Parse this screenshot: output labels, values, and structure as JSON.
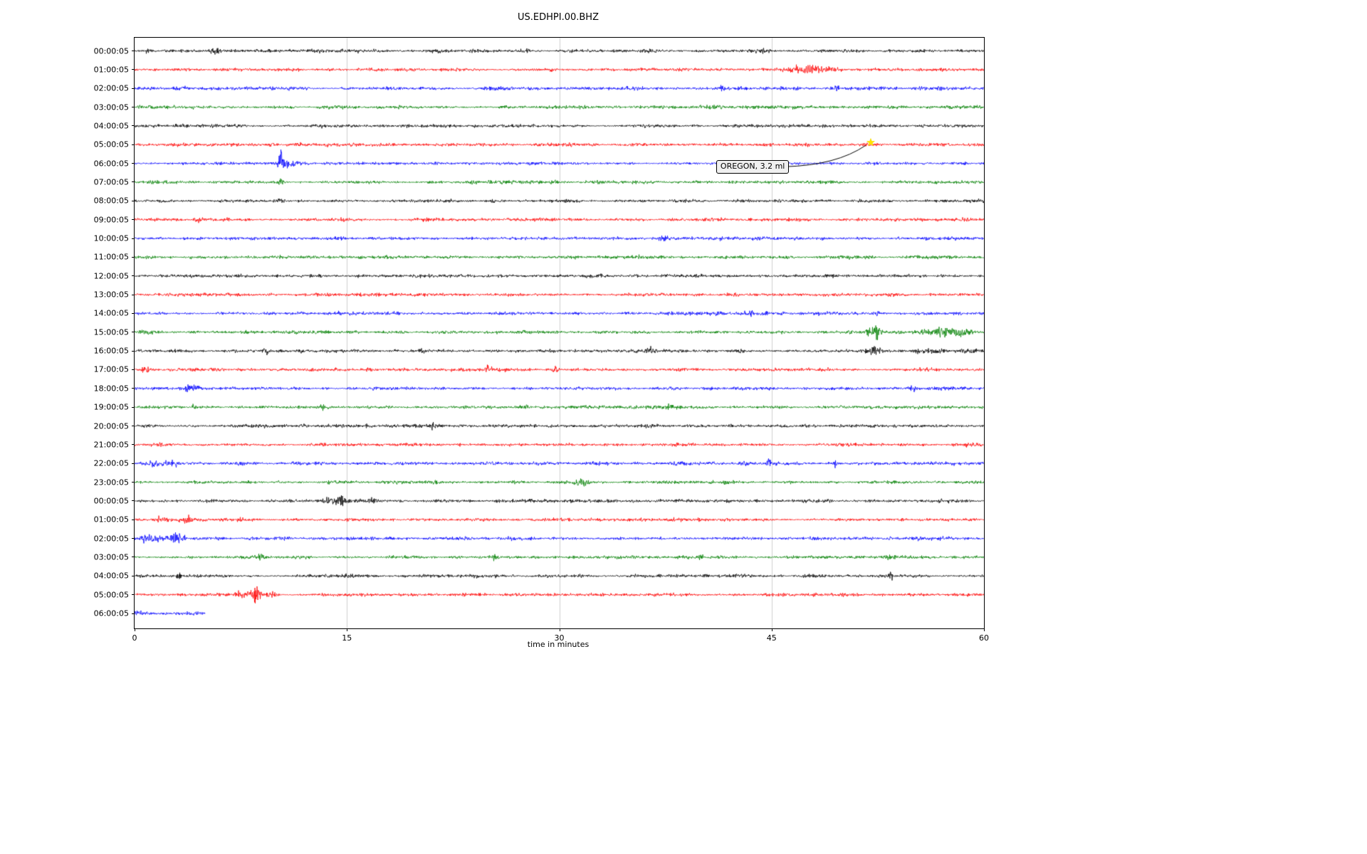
{
  "chart_data": {
    "type": "line",
    "subtype": "seismogram-helicorder",
    "title": "US.EDHPI.00.BHZ",
    "xlabel": "time in minutes",
    "xlim": [
      0,
      60
    ],
    "x_ticks": [
      0,
      15,
      30,
      45,
      60
    ],
    "grid": "vertical-gridlines-at-interior-ticks",
    "legend": "none",
    "color_cycle": [
      "black",
      "red",
      "blue",
      "green"
    ],
    "colors": {
      "black": "#000000",
      "red": "#ff0000",
      "blue": "#0000ff",
      "green": "#008000",
      "grid": "#cfcfcf",
      "star": "#ffe400",
      "annotation_bg": "#f0f0f0"
    },
    "annotation": {
      "text": "OREGON, 3.2 ml",
      "row_label": "05:00:05",
      "row_index": 5,
      "x_minutes": 52,
      "marker": "yellow-star"
    },
    "rows": [
      {
        "label": "00:00:05",
        "color": "black",
        "events": [
          {
            "x": 0.9,
            "a": 2.2,
            "w": 0.12
          },
          {
            "x": 5.6,
            "a": 1.2,
            "w": 0.4
          },
          {
            "x": 44.1,
            "a": 1.6,
            "w": 0.6
          }
        ]
      },
      {
        "label": "01:00:05",
        "color": "red",
        "events": [
          {
            "x": 47.5,
            "a": 1.8,
            "w": 1.2
          },
          {
            "x": 49.2,
            "a": 1.5,
            "w": 0.8
          },
          {
            "x": 56.8,
            "a": 1.2,
            "w": 0.4
          }
        ]
      },
      {
        "label": "02:00:05",
        "color": "blue",
        "events": [
          {
            "x": 41.5,
            "a": 1.2,
            "w": 0.3
          },
          {
            "x": 49.6,
            "a": 2.2,
            "w": 0.15
          }
        ]
      },
      {
        "label": "03:00:05",
        "color": "green",
        "events": []
      },
      {
        "label": "04:00:05",
        "color": "black",
        "events": []
      },
      {
        "label": "05:00:05",
        "color": "red",
        "events": []
      },
      {
        "label": "06:00:05",
        "color": "blue",
        "events": [
          {
            "x": 10.3,
            "a": 7.0,
            "w": 0.18
          },
          {
            "x": 10.9,
            "a": 2.0,
            "w": 0.6
          }
        ]
      },
      {
        "label": "07:00:05",
        "color": "green",
        "events": [
          {
            "x": 10.4,
            "a": 1.5,
            "w": 0.3
          }
        ]
      },
      {
        "label": "08:00:05",
        "color": "black",
        "events": []
      },
      {
        "label": "09:00:05",
        "color": "red",
        "events": [
          {
            "x": 4.5,
            "a": 1.2,
            "w": 0.4
          }
        ]
      },
      {
        "label": "10:00:05",
        "color": "blue",
        "events": [
          {
            "x": 37.3,
            "a": 1.2,
            "w": 0.4
          }
        ]
      },
      {
        "label": "11:00:05",
        "color": "green",
        "events": []
      },
      {
        "label": "12:00:05",
        "color": "black",
        "events": []
      },
      {
        "label": "13:00:05",
        "color": "red",
        "events": []
      },
      {
        "label": "14:00:05",
        "color": "blue",
        "events": [
          {
            "x": 43.4,
            "a": 1.5,
            "w": 0.2
          },
          {
            "x": 52.4,
            "a": 1.6,
            "w": 0.3
          }
        ]
      },
      {
        "label": "15:00:05",
        "color": "green",
        "events": [
          {
            "x": 52.3,
            "a": 6.0,
            "w": 0.5
          },
          {
            "x": 56.5,
            "a": 2.5,
            "w": 0.8
          },
          {
            "x": 58.2,
            "a": 2.5,
            "w": 0.8
          }
        ]
      },
      {
        "label": "16:00:05",
        "color": "black",
        "events": [
          {
            "x": 9.3,
            "a": 1.6,
            "w": 0.2
          },
          {
            "x": 20.3,
            "a": 1.6,
            "w": 0.2
          },
          {
            "x": 36.6,
            "a": 1.8,
            "w": 0.3
          },
          {
            "x": 52.3,
            "a": 2.2,
            "w": 0.5
          },
          {
            "x": 56.2,
            "a": 1.8,
            "w": 0.8
          },
          {
            "x": 59.0,
            "a": 1.8,
            "w": 0.4
          }
        ]
      },
      {
        "label": "17:00:05",
        "color": "red",
        "events": [
          {
            "x": 0.8,
            "a": 1.8,
            "w": 0.3
          },
          {
            "x": 14.3,
            "a": 1.3,
            "w": 0.3
          },
          {
            "x": 25.0,
            "a": 1.6,
            "w": 0.2
          },
          {
            "x": 29.8,
            "a": 1.8,
            "w": 0.3
          }
        ]
      },
      {
        "label": "18:00:05",
        "color": "blue",
        "events": [
          {
            "x": 4.0,
            "a": 1.5,
            "w": 0.5
          },
          {
            "x": 55.0,
            "a": 1.8,
            "w": 0.4
          }
        ]
      },
      {
        "label": "19:00:05",
        "color": "green",
        "events": [
          {
            "x": 4.2,
            "a": 2.2,
            "w": 0.15
          },
          {
            "x": 13.5,
            "a": 1.2,
            "w": 0.3
          },
          {
            "x": 27.6,
            "a": 1.6,
            "w": 0.4
          },
          {
            "x": 38.0,
            "a": 1.8,
            "w": 0.5
          }
        ]
      },
      {
        "label": "20:00:05",
        "color": "black",
        "events": [
          {
            "x": 12.0,
            "a": 1.2,
            "w": 0.3
          },
          {
            "x": 18.4,
            "a": 2.0,
            "w": 0.2
          },
          {
            "x": 21.0,
            "a": 2.2,
            "w": 0.15
          }
        ]
      },
      {
        "label": "21:00:05",
        "color": "red",
        "events": [
          {
            "x": 39.5,
            "a": 2.5,
            "w": 0.12
          }
        ]
      },
      {
        "label": "22:00:05",
        "color": "blue",
        "events": [
          {
            "x": 2.0,
            "a": 1.3,
            "w": 1.0
          },
          {
            "x": 44.8,
            "a": 1.8,
            "w": 0.12
          },
          {
            "x": 49.5,
            "a": 1.6,
            "w": 0.12
          }
        ]
      },
      {
        "label": "23:00:05",
        "color": "green",
        "events": [
          {
            "x": 31.8,
            "a": 1.8,
            "w": 0.5
          },
          {
            "x": 42.0,
            "a": 1.8,
            "w": 0.5
          }
        ]
      },
      {
        "label": "00:00:05",
        "color": "black",
        "events": [
          {
            "x": 14.0,
            "a": 2.0,
            "w": 0.8
          },
          {
            "x": 14.6,
            "a": 3.0,
            "w": 0.12
          },
          {
            "x": 16.8,
            "a": 1.6,
            "w": 0.5
          },
          {
            "x": 41.8,
            "a": 1.8,
            "w": 0.4
          }
        ]
      },
      {
        "label": "01:00:05",
        "color": "red",
        "events": [
          {
            "x": 0.5,
            "a": 1.5,
            "w": 0.3
          },
          {
            "x": 1.8,
            "a": 1.8,
            "w": 0.5
          },
          {
            "x": 3.5,
            "a": 1.8,
            "w": 0.5
          }
        ]
      },
      {
        "label": "02:00:05",
        "color": "blue",
        "events": [
          {
            "x": 0.5,
            "a": 2.0,
            "w": 0.6
          },
          {
            "x": 1.5,
            "a": 1.5,
            "w": 0.8
          },
          {
            "x": 2.8,
            "a": 4.5,
            "w": 0.2
          },
          {
            "x": 3.3,
            "a": 3.5,
            "w": 0.2
          }
        ]
      },
      {
        "label": "03:00:05",
        "color": "green",
        "events": [
          {
            "x": 8.8,
            "a": 2.5,
            "w": 0.3
          },
          {
            "x": 25.4,
            "a": 1.8,
            "w": 0.1
          },
          {
            "x": 40.0,
            "a": 1.3,
            "w": 0.3
          }
        ]
      },
      {
        "label": "04:00:05",
        "color": "black",
        "events": [
          {
            "x": 3.1,
            "a": 4.0,
            "w": 0.12
          },
          {
            "x": 53.4,
            "a": 4.5,
            "w": 0.1
          }
        ]
      },
      {
        "label": "05:00:05",
        "color": "red",
        "events": [
          {
            "x": 7.5,
            "a": 2.0,
            "w": 0.3
          },
          {
            "x": 8.6,
            "a": 6.5,
            "w": 0.35
          },
          {
            "x": 9.6,
            "a": 2.0,
            "w": 0.4
          }
        ]
      },
      {
        "label": "06:00:05",
        "color": "blue",
        "extent_minutes": 5.0,
        "events": [
          {
            "x": 0.3,
            "a": 1.5,
            "w": 0.5
          }
        ]
      }
    ]
  }
}
